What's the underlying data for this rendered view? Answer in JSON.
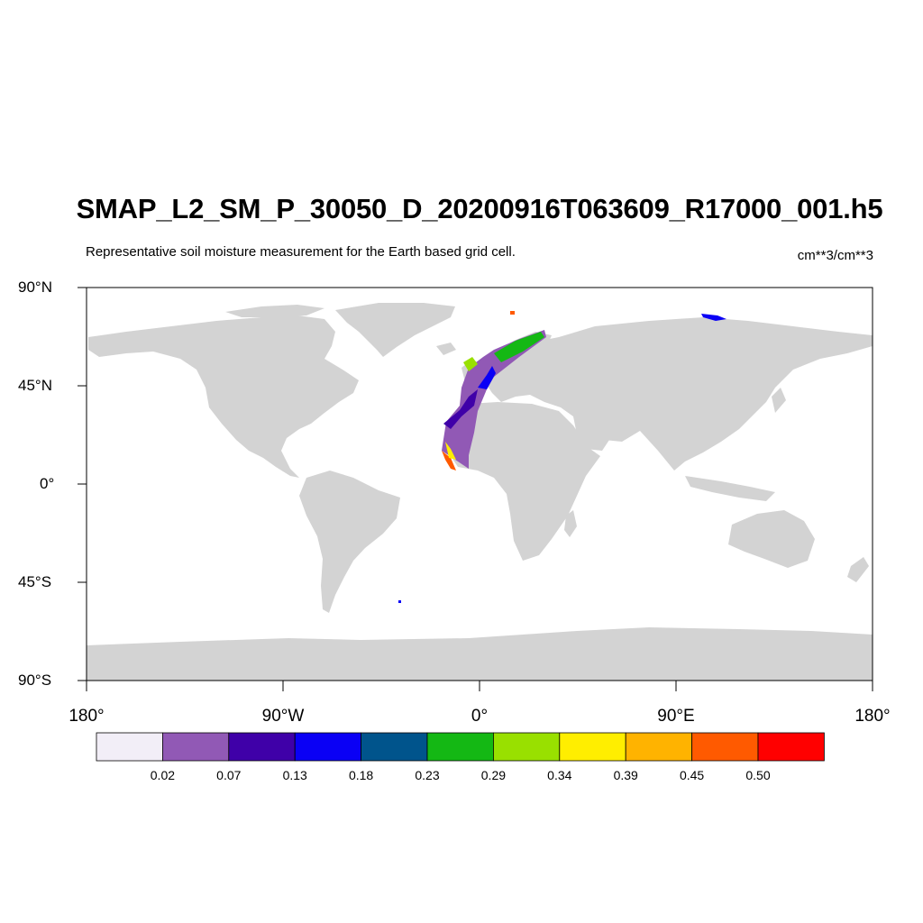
{
  "title": "SMAP_L2_SM_P_30050_D_20200916T063609_R17000_001.h5",
  "subtitle": "Representative soil moisture measurement for the Earth based grid cell.",
  "units": "cm**3/cm**3",
  "axes": {
    "y_ticks": [
      {
        "label": "90°N",
        "lat": 90
      },
      {
        "label": "45°N",
        "lat": 45
      },
      {
        "label": "0°",
        "lat": 0
      },
      {
        "label": "45°S",
        "lat": -45
      },
      {
        "label": "90°S",
        "lat": -90
      }
    ],
    "x_ticks": [
      {
        "label": "180°",
        "lon": -180
      },
      {
        "label": "90°W",
        "lon": -90
      },
      {
        "label": "0°",
        "lon": 0
      },
      {
        "label": "90°E",
        "lon": 90
      },
      {
        "label": "180°",
        "lon": 180
      }
    ],
    "lon_range": [
      -180,
      180
    ],
    "lat_range": [
      -90,
      90
    ]
  },
  "colorbar": {
    "colors": [
      "#f2eef7",
      "#9159b5",
      "#3f00a8",
      "#0a00f5",
      "#00548c",
      "#14b814",
      "#99e000",
      "#ffee00",
      "#ffb300",
      "#ff5a00",
      "#ff0000"
    ],
    "labels": [
      "0.02",
      "0.07",
      "0.13",
      "0.18",
      "0.23",
      "0.29",
      "0.34",
      "0.39",
      "0.45",
      "0.50"
    ]
  },
  "land_color": "#d3d3d3"
}
